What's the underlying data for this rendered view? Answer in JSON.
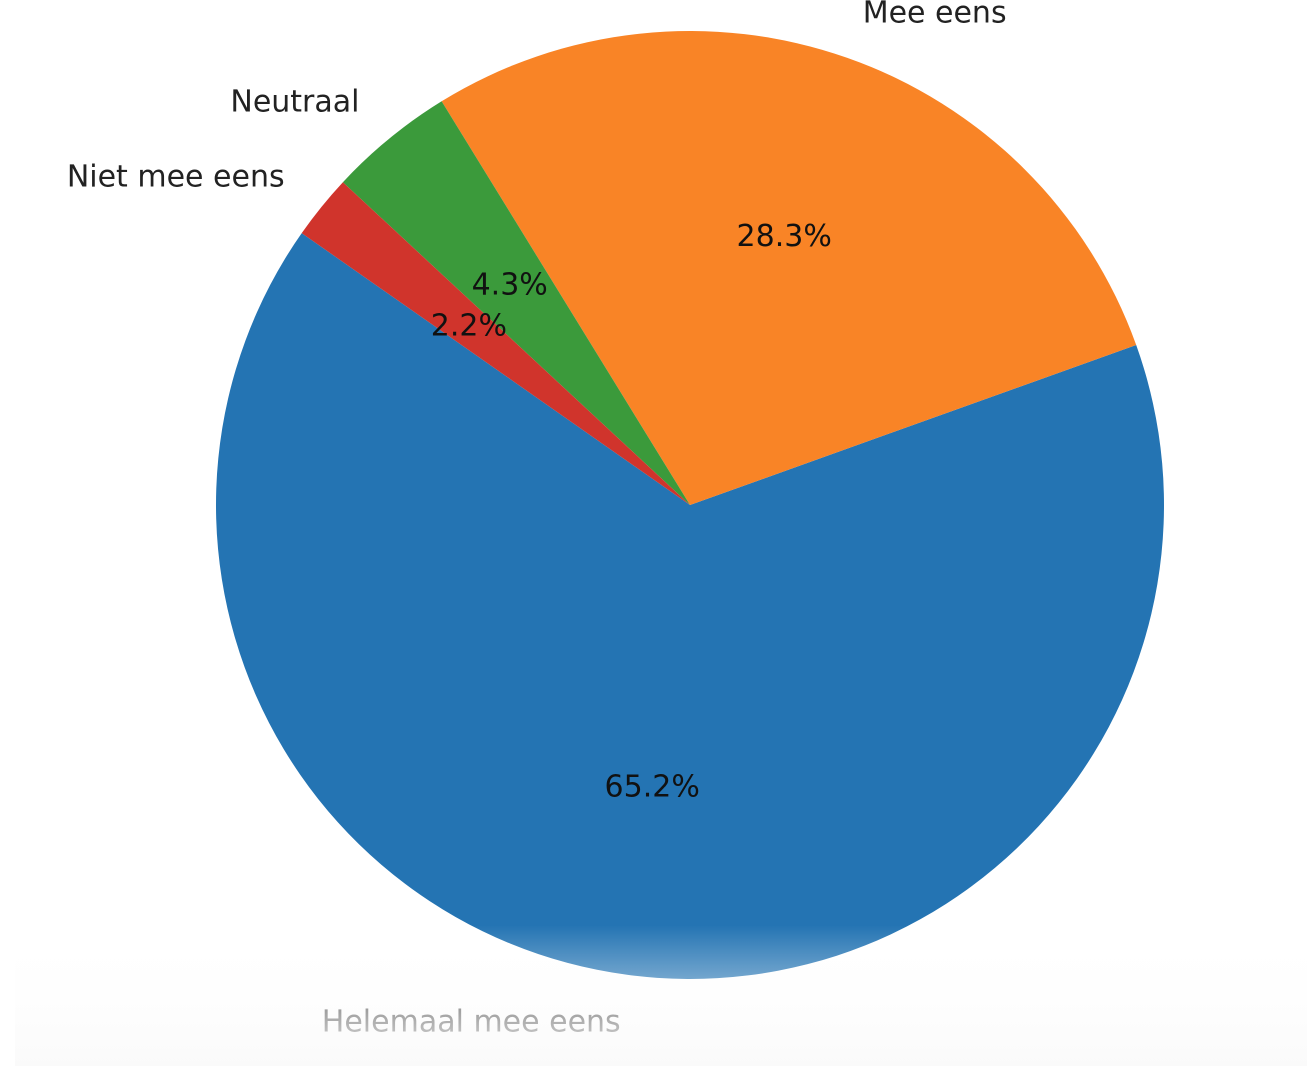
{
  "chart_data": {
    "type": "pie",
    "categories": [
      "Helemaal mee eens",
      "Mee eens",
      "Neutraal",
      "Niet mee eens"
    ],
    "values": [
      65.2,
      28.3,
      4.3,
      2.2
    ],
    "labels_pct": [
      "65.2%",
      "28.3%",
      "4.3%",
      "2.2%"
    ],
    "colors": [
      "#2474b3",
      "#f98426",
      "#3b9a3b",
      "#d0342c"
    ],
    "legend": "none",
    "title": ""
  }
}
